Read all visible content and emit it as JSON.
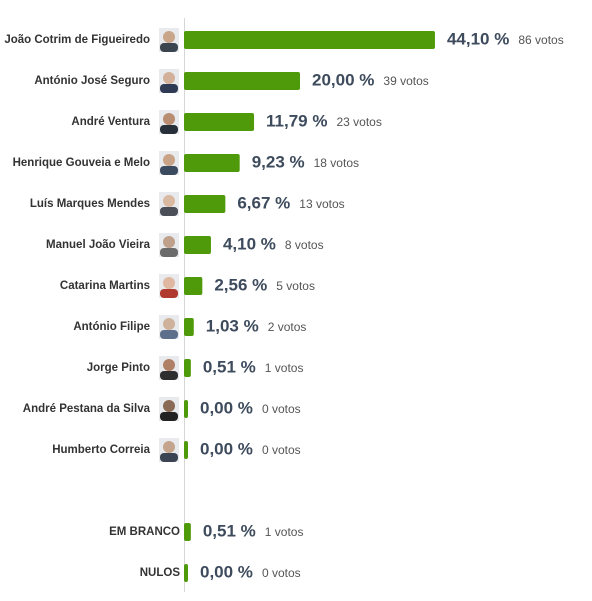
{
  "chart_data": {
    "type": "bar",
    "orientation": "horizontal",
    "categories": [
      "João Cotrim de Figueiredo",
      "António José Seguro",
      "André Ventura",
      "Henrique Gouveia e Melo",
      "Luís Marques Mendes",
      "Manuel João Vieira",
      "Catarina Martins",
      "António Filipe",
      "Jorge Pinto",
      "André Pestana da Silva",
      "Humberto Correia",
      "EM BRANCO",
      "NULOS"
    ],
    "values": [
      44.1,
      20.0,
      11.79,
      9.23,
      6.67,
      4.1,
      2.56,
      1.03,
      0.51,
      0.0,
      0.0,
      0.51,
      0.0
    ],
    "value_labels": [
      "44,10 %",
      "20,00 %",
      "11,79 %",
      "9,23 %",
      "6,67 %",
      "4,10 %",
      "2,56 %",
      "1,03 %",
      "0,51 %",
      "0,00 %",
      "0,00 %",
      "0,51 %",
      "0,00 %"
    ],
    "votes_labels": [
      "86 votos",
      "39 votos",
      "23 votos",
      "18 votos",
      "13 votos",
      "8 votos",
      "5 votos",
      "2 votos",
      "1 votos",
      "0 votos",
      "0 votos",
      "1 votos",
      "0 votos"
    ],
    "color": "#4f9a0a"
  }
}
